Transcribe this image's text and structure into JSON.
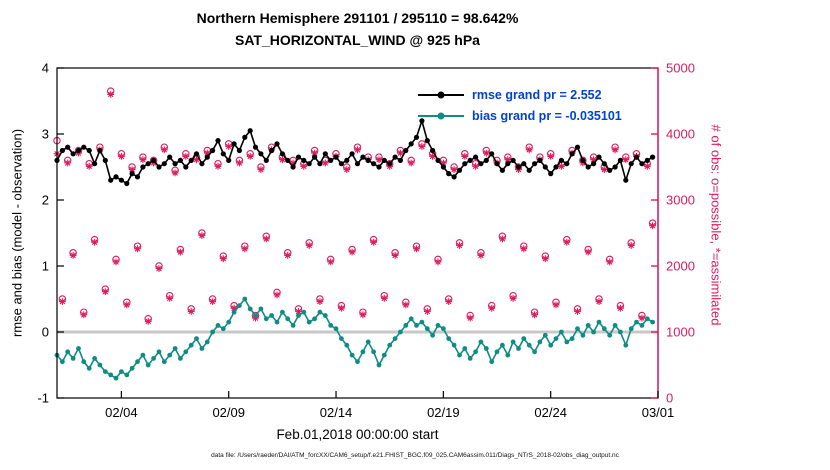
{
  "title": {
    "line1": "Northern Hemisphere 291101 / 295110 = 98.642%",
    "line2": "SAT_HORIZONTAL_WIND @ 925 hPa"
  },
  "axes": {
    "left_label": "rmse and bias (model - observation)",
    "right_label": "# of obs: o=possible, *=assimilated",
    "x_label": "Feb.01,2018 00:00:00 start",
    "left_ticks": [
      -1,
      0,
      1,
      2,
      3,
      4
    ],
    "right_ticks": [
      0,
      1000,
      2000,
      3000,
      4000,
      5000
    ],
    "x_tick_labels": [
      "02/04",
      "02/09",
      "02/14",
      "02/19",
      "02/24",
      "03/01"
    ],
    "x_tick_days": [
      3,
      8,
      13,
      18,
      23,
      28
    ],
    "left_range": [
      -1,
      4
    ],
    "right_range": [
      0,
      5000
    ],
    "x_range_days": [
      0,
      28
    ]
  },
  "legend": [
    {
      "label": "rmse grand pr = 2.552",
      "series": "rmse"
    },
    {
      "label": "bias grand pr = -0.035101",
      "series": "bias"
    }
  ],
  "colors": {
    "rmse": "#000000",
    "bias": "#0f8c84",
    "obs": "#dc1c5c",
    "legend_text": "#0044cc",
    "zero_line": "#c8c8c8"
  },
  "footer": "data file: /Users/raeder/DAI/ATM_forcXX/CAM6_setup/f.e21.FHIST_BGC.f09_025.CAM6assim.011/Diags_NTrS_2018-02/obs_diag_output.nc",
  "chart_data": {
    "type": "line",
    "title": "Northern Hemisphere 291101 / 295110 = 98.642% — SAT_HORIZONTAL_WIND @ 925 hPa",
    "xlabel": "Feb.01,2018 00:00:00 start",
    "ylabel_left": "rmse and bias (model - observation)",
    "ylabel_right": "# of obs: o=possible, *=assimilated",
    "ylim_left": [
      -1,
      4
    ],
    "ylim_right": [
      0,
      5000
    ],
    "grid": false,
    "legend_position": "top-right-inside",
    "x": {
      "start_day": 0,
      "step_days": 0.25,
      "count": 112,
      "start_date": "2018-02-01 00:00:00"
    },
    "series": [
      {
        "name": "rmse",
        "axis": "left",
        "marker": "filled-circle",
        "grand_mean": 2.552,
        "values": [
          2.6,
          2.75,
          2.8,
          2.7,
          2.75,
          2.8,
          2.75,
          2.55,
          2.75,
          2.6,
          2.3,
          2.35,
          2.3,
          2.25,
          2.4,
          2.35,
          2.5,
          2.55,
          2.6,
          2.5,
          2.55,
          2.65,
          2.55,
          2.6,
          2.5,
          2.6,
          2.7,
          2.55,
          2.65,
          2.75,
          2.9,
          2.7,
          2.6,
          2.85,
          2.75,
          2.95,
          3.05,
          2.8,
          2.7,
          2.6,
          2.75,
          2.85,
          2.7,
          2.6,
          2.5,
          2.65,
          2.6,
          2.55,
          2.65,
          2.55,
          2.7,
          2.6,
          2.65,
          2.55,
          2.6,
          2.7,
          2.55,
          2.65,
          2.6,
          2.55,
          2.5,
          2.6,
          2.55,
          2.65,
          2.6,
          2.75,
          2.85,
          2.95,
          3.2,
          2.9,
          2.75,
          2.6,
          2.5,
          2.4,
          2.35,
          2.45,
          2.55,
          2.6,
          2.65,
          2.55,
          2.6,
          2.7,
          2.55,
          2.45,
          2.55,
          2.6,
          2.5,
          2.55,
          2.45,
          2.55,
          2.6,
          2.5,
          2.4,
          2.5,
          2.6,
          2.55,
          2.7,
          2.8,
          2.6,
          2.5,
          2.55,
          2.65,
          2.55,
          2.45,
          2.5,
          2.6,
          2.3,
          2.55,
          2.65,
          2.55,
          2.6,
          2.65
        ]
      },
      {
        "name": "bias",
        "axis": "left",
        "marker": "filled-circle",
        "grand_mean": -0.035101,
        "values": [
          -0.35,
          -0.45,
          -0.3,
          -0.4,
          -0.25,
          -0.45,
          -0.55,
          -0.4,
          -0.5,
          -0.6,
          -0.65,
          -0.7,
          -0.6,
          -0.65,
          -0.55,
          -0.45,
          -0.35,
          -0.5,
          -0.4,
          -0.3,
          -0.45,
          -0.35,
          -0.25,
          -0.4,
          -0.3,
          -0.2,
          -0.1,
          -0.25,
          -0.15,
          0,
          0.1,
          0.05,
          0.15,
          0.3,
          0.4,
          0.5,
          0.35,
          0.25,
          0.35,
          0.2,
          0.25,
          0.15,
          0.3,
          0.2,
          0.1,
          0.25,
          0.3,
          0.15,
          0.2,
          0.3,
          0.25,
          0.1,
          0.05,
          -0.1,
          -0.2,
          -0.35,
          -0.45,
          -0.3,
          -0.15,
          -0.3,
          -0.5,
          -0.35,
          -0.2,
          -0.1,
          0,
          0.1,
          0.2,
          0.1,
          0.15,
          0.05,
          -0.05,
          0.1,
          0.05,
          -0.1,
          -0.2,
          -0.35,
          -0.25,
          -0.4,
          -0.3,
          -0.15,
          -0.25,
          -0.45,
          -0.3,
          -0.2,
          -0.35,
          -0.15,
          -0.25,
          -0.1,
          -0.2,
          -0.3,
          -0.15,
          -0.05,
          -0.2,
          -0.1,
          0,
          -0.15,
          -0.1,
          0.05,
          -0.05,
          0.1,
          0,
          0.15,
          0.05,
          -0.05,
          0.1,
          0,
          -0.2,
          0.05,
          0.15,
          0.1,
          0.2,
          0.15
        ]
      },
      {
        "name": "possible",
        "axis": "right",
        "marker": "open-circle",
        "total": 295110,
        "values": [
          3900,
          1500,
          3600,
          2200,
          3750,
          1300,
          3550,
          2400,
          3800,
          1650,
          4650,
          2100,
          3700,
          1450,
          3500,
          2300,
          3650,
          1200,
          3600,
          2000,
          3800,
          1550,
          3450,
          2250,
          3700,
          1350,
          3650,
          2500,
          3750,
          1500,
          3550,
          2150,
          3850,
          1400,
          3600,
          2300,
          3700,
          1250,
          3500,
          2450,
          3800,
          1600,
          3650,
          2200,
          3600,
          1350,
          3550,
          2350,
          3750,
          1500,
          3600,
          2100,
          3700,
          1400,
          3500,
          2250,
          3800,
          1300,
          3650,
          2400,
          3650,
          1550,
          3550,
          2200,
          3750,
          1450,
          3600,
          2300,
          3850,
          1350,
          3700,
          2100,
          3600,
          1500,
          3500,
          2350,
          3700,
          1250,
          3550,
          2200,
          3750,
          1400,
          3600,
          2450,
          3650,
          1550,
          3500,
          2300,
          3800,
          1300,
          3650,
          2150,
          3700,
          1450,
          3550,
          2400,
          3750,
          1350,
          3600,
          2250,
          3650,
          1500,
          3500,
          2100,
          3800,
          1400,
          3650,
          2350,
          3700,
          1250,
          3550,
          2650
        ]
      },
      {
        "name": "assimilated",
        "axis": "right",
        "marker": "asterisk",
        "total": 291101,
        "values": [
          3700,
          1460,
          3560,
          2160,
          3710,
          1260,
          3510,
          2360,
          3760,
          1610,
          4600,
          2060,
          3660,
          1410,
          3460,
          2260,
          3610,
          1160,
          3560,
          1960,
          3760,
          1510,
          3410,
          2210,
          3660,
          1310,
          3610,
          2460,
          3710,
          1460,
          3510,
          2110,
          3810,
          1360,
          3560,
          2260,
          3660,
          1210,
          3460,
          2410,
          3760,
          1560,
          3610,
          2160,
          3560,
          1310,
          3510,
          2310,
          3710,
          1460,
          3560,
          2060,
          3660,
          1360,
          3460,
          2210,
          3760,
          1260,
          3610,
          2360,
          3610,
          1510,
          3510,
          2160,
          3710,
          1410,
          3560,
          2260,
          3810,
          1310,
          3660,
          2060,
          3560,
          1460,
          3460,
          2310,
          3660,
          1210,
          3510,
          2160,
          3710,
          1360,
          3560,
          2410,
          3610,
          1510,
          3460,
          2260,
          3760,
          1260,
          3610,
          2110,
          3660,
          1410,
          3510,
          2360,
          3710,
          1310,
          3560,
          2210,
          3610,
          1460,
          3460,
          2060,
          3760,
          1360,
          3610,
          2310,
          3660,
          1210,
          3510,
          2610
        ]
      }
    ]
  }
}
